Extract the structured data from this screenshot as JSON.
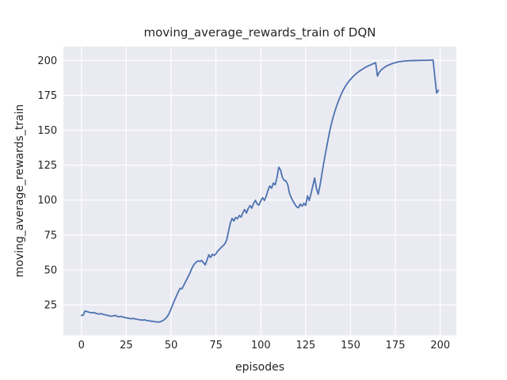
{
  "figure": {
    "background": "#ffffff"
  },
  "chart_data": {
    "type": "line",
    "title": "moving_average_rewards_train of DQN",
    "xlabel": "episodes",
    "ylabel": "moving_average_rewards_train",
    "x_ticks": [
      0,
      25,
      50,
      75,
      100,
      125,
      150,
      175,
      200
    ],
    "y_ticks": [
      25,
      50,
      75,
      100,
      125,
      150,
      175,
      200
    ],
    "xlim": [
      -9.95,
      208.95
    ],
    "ylim": [
      3.2,
      209.9
    ],
    "grid": true,
    "legend_position": "none",
    "style": {
      "plot_background": "#eaeaf2",
      "grid_color": "#ffffff",
      "line_color": "#4c72b0",
      "text_color": "#262626",
      "line_width": 1.8
    },
    "series": [
      {
        "name": "moving_average_rewards_train",
        "x_start": 0,
        "x_step": 1,
        "values": [
          17.4,
          17.6,
          20.6,
          20.2,
          19.8,
          19.5,
          19.2,
          19.5,
          18.9,
          18.6,
          18.4,
          18.7,
          18.2,
          17.9,
          17.6,
          17.3,
          17.0,
          16.8,
          17.2,
          17.4,
          16.7,
          16.4,
          16.7,
          16.3,
          16.0,
          15.7,
          15.5,
          15.2,
          15.0,
          15.3,
          14.9,
          14.7,
          14.4,
          14.2,
          14.0,
          14.3,
          13.9,
          13.7,
          13.5,
          13.3,
          13.1,
          12.9,
          12.8,
          12.6,
          12.9,
          13.4,
          14.2,
          15.3,
          16.8,
          19.2,
          22.2,
          25.4,
          28.4,
          31.4,
          34.2,
          36.8,
          36.4,
          38.8,
          41.4,
          43.9,
          46.3,
          49.3,
          52.2,
          54.2,
          55.6,
          56.5,
          56.0,
          56.8,
          55.2,
          53.6,
          57.0,
          60.8,
          58.9,
          61.2,
          60.3,
          61.5,
          63.6,
          64.8,
          66.2,
          67.3,
          68.8,
          71.5,
          77.5,
          83.5,
          86.9,
          85.0,
          87.6,
          86.6,
          89.0,
          87.8,
          91.0,
          93.2,
          90.7,
          94.1,
          96.0,
          94.2,
          97.7,
          99.8,
          97.1,
          96.4,
          99.6,
          101.7,
          99.7,
          102.7,
          107.0,
          110.1,
          108.5,
          112.1,
          110.9,
          116.1,
          123.5,
          121.5,
          116.3,
          114.1,
          113.7,
          111.1,
          104.7,
          101.6,
          99.1,
          97.0,
          95.1,
          94.5,
          97.1,
          95.6,
          97.7,
          96.1,
          103.0,
          99.7,
          104.6,
          110.3,
          115.8,
          108.3,
          104.2,
          110.6,
          118.4,
          126.1,
          133.2,
          140.0,
          146.8,
          152.8,
          157.9,
          162.4,
          166.4,
          170.0,
          173.3,
          176.3,
          178.9,
          181.2,
          183.2,
          184.9,
          186.4,
          187.8,
          189.1,
          190.3,
          191.4,
          192.3,
          193.2,
          194.0,
          194.8,
          195.5,
          196.1,
          196.7,
          197.3,
          197.8,
          198.3,
          188.8,
          191.4,
          193.0,
          194.1,
          195.1,
          195.9,
          196.5,
          197.1,
          197.6,
          198.0,
          198.4,
          198.7,
          199.0,
          199.2,
          199.4,
          199.5,
          199.6,
          199.7,
          199.8,
          199.8,
          199.9,
          199.9,
          199.9,
          200.0,
          200.0,
          200.0,
          200.0,
          200.0,
          200.1,
          200.1,
          200.2,
          200.2,
          188.0,
          176.6,
          178.6
        ]
      }
    ]
  }
}
